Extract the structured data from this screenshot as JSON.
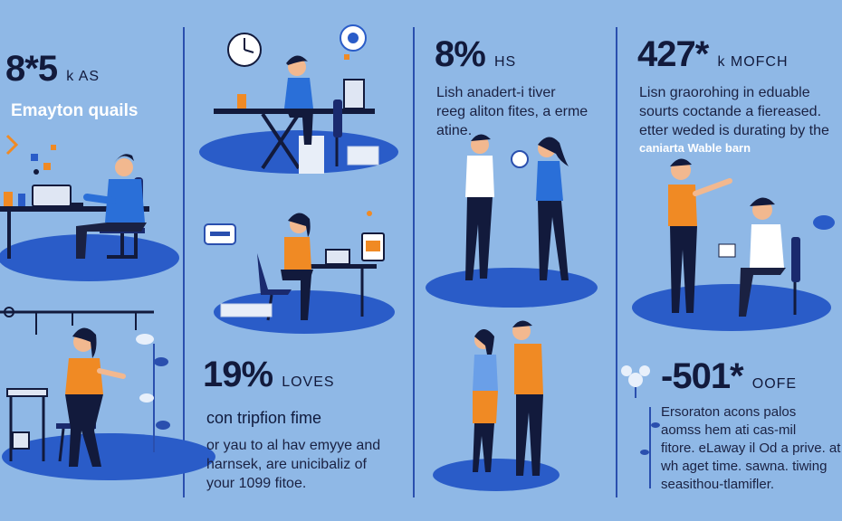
{
  "colors": {
    "background": "#8fb8e6",
    "accent_blue": "#2a5cc8",
    "orange": "#f08a24",
    "navy": "#121a3c",
    "divider": "#2a4fae"
  },
  "col1": {
    "stat": "8*5",
    "stat_suffix": "k AS",
    "subtitle": "Emayton quails"
  },
  "col2": {
    "stat": "19%",
    "stat_suffix": "LOVES",
    "heading": "con tripfion fime",
    "body_lines": [
      "or yau to al hav emyye and",
      "harnsek, are unicibaliz of",
      "your 1099 fitoe."
    ]
  },
  "col3": {
    "stat": "8%",
    "stat_suffix": "HS",
    "body_lines": [
      "Lish anadert-i tiver",
      "reeg aliton fites, a erme",
      "atine."
    ]
  },
  "col4": {
    "stat": "427*",
    "stat_suffix": "k MOFCH",
    "body_lines": [
      "Lisn graorohing in eduable",
      "sourts coctande a fiereased.",
      "etter weded is durating by the"
    ],
    "caption": "caniarta Wable barn",
    "stat2": "-501*",
    "stat2_suffix": "OOFE",
    "body2_lines": [
      "Ersoraton acons palos",
      "aomss hem ati cas-mil",
      "fitore. eLaway il Od a prive. at",
      "wh aget time. sawna. tiwing",
      "seasithou-tlamifler."
    ]
  },
  "icons": [
    "clock-icon",
    "chat-bubble-icon",
    "message-card-icon",
    "tea-cup-icon",
    "leaf-plant-icon"
  ]
}
